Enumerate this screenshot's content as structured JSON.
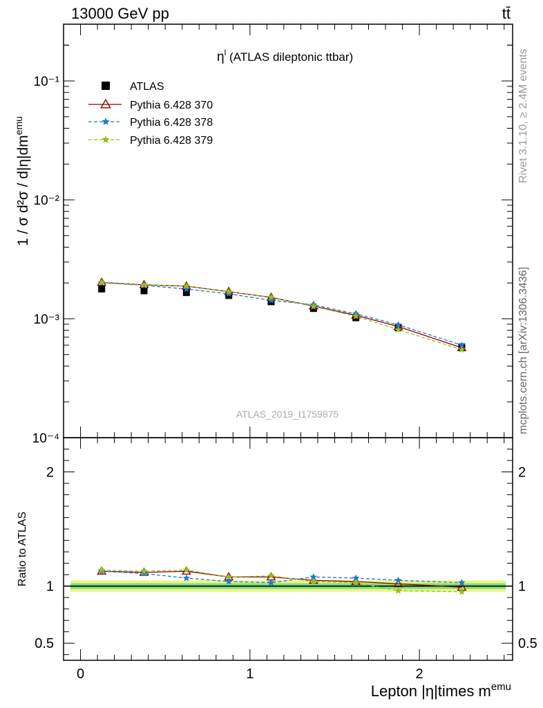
{
  "header": {
    "left": "13000 GeV pp",
    "right": "tt̄"
  },
  "side_labels": {
    "rivet": "Rivet 3.1.10, ≥ 2.4M events",
    "mcplots": "mcplots.cern.ch [arXiv:1306.3436]"
  },
  "chart_data": [
    {
      "type": "scatter",
      "title_main": "η",
      "title_sup": "l",
      "title_rest": " (ATLAS dileptonic ttbar)",
      "watermark": "ATLAS_2019_I1759875",
      "ylabel": "1 / σ  d²σ / d|η|dm^emu",
      "yscale": "log",
      "ylim": [
        0.0001,
        0.3
      ],
      "ytick_labels": [
        "10⁻⁴",
        "10⁻³",
        "10⁻²",
        "10⁻¹"
      ],
      "xlim": [
        -0.1,
        2.55
      ],
      "legend_position": "top-left",
      "x": [
        0.125,
        0.375,
        0.625,
        0.875,
        1.125,
        1.375,
        1.625,
        1.875,
        2.25
      ],
      "series": [
        {
          "name": "ATLAS",
          "style": "data",
          "color": "#000000",
          "values": [
            0.00178,
            0.00172,
            0.00166,
            0.00157,
            0.00139,
            0.00122,
            0.00102,
            0.00084,
            0.00058
          ]
        },
        {
          "name": "Pythia 6.428 370",
          "style": "solid-triangle",
          "color": "#8b0000",
          "values": [
            0.00202,
            0.00193,
            0.00188,
            0.00169,
            0.00151,
            0.00128,
            0.00107,
            0.00086,
            0.00057
          ]
        },
        {
          "name": "Pythia 6.428 378",
          "style": "dashed-star",
          "color": "#1f78d1",
          "values": [
            0.00201,
            0.00191,
            0.00178,
            0.00162,
            0.00143,
            0.00131,
            0.0011,
            0.00089,
            0.0006
          ]
        },
        {
          "name": "Pythia 6.428 379",
          "style": "dashed-star",
          "color": "#8fc31f",
          "values": [
            0.00203,
            0.00193,
            0.00189,
            0.00169,
            0.00152,
            0.00127,
            0.00105,
            0.00081,
            0.00055
          ]
        }
      ]
    },
    {
      "type": "scatter",
      "ylabel": "Ratio to ATLAS",
      "xlabel": "Lepton |η|times m^emu",
      "ylim": [
        0.35,
        2.3
      ],
      "yticks": [
        0.5,
        1,
        2
      ],
      "ytick_labels": [
        "0.5",
        "1",
        "2"
      ],
      "xlim": [
        -0.1,
        2.55
      ],
      "xticks": [
        0,
        1,
        2
      ],
      "xtick_labels": [
        "0",
        "1",
        "2"
      ],
      "band": {
        "inner": 0.025,
        "outer": 0.05,
        "inner_color": "#7fe07f",
        "outer_color": "#ecf58a"
      },
      "x": [
        0.125,
        0.375,
        0.625,
        0.875,
        1.125,
        1.375,
        1.625,
        1.875,
        2.25
      ],
      "series": [
        {
          "name": "Pythia 6.428 370",
          "color": "#8b0000",
          "values": [
            1.13,
            1.12,
            1.13,
            1.08,
            1.08,
            1.05,
            1.04,
            1.02,
            0.99
          ]
        },
        {
          "name": "Pythia 6.428 378",
          "color": "#1f78d1",
          "values": [
            1.13,
            1.11,
            1.07,
            1.04,
            1.03,
            1.08,
            1.07,
            1.05,
            1.03
          ]
        },
        {
          "name": "Pythia 6.428 379",
          "color": "#8fc31f",
          "values": [
            1.14,
            1.13,
            1.14,
            1.08,
            1.09,
            1.04,
            1.03,
            0.96,
            0.95
          ]
        }
      ]
    }
  ]
}
